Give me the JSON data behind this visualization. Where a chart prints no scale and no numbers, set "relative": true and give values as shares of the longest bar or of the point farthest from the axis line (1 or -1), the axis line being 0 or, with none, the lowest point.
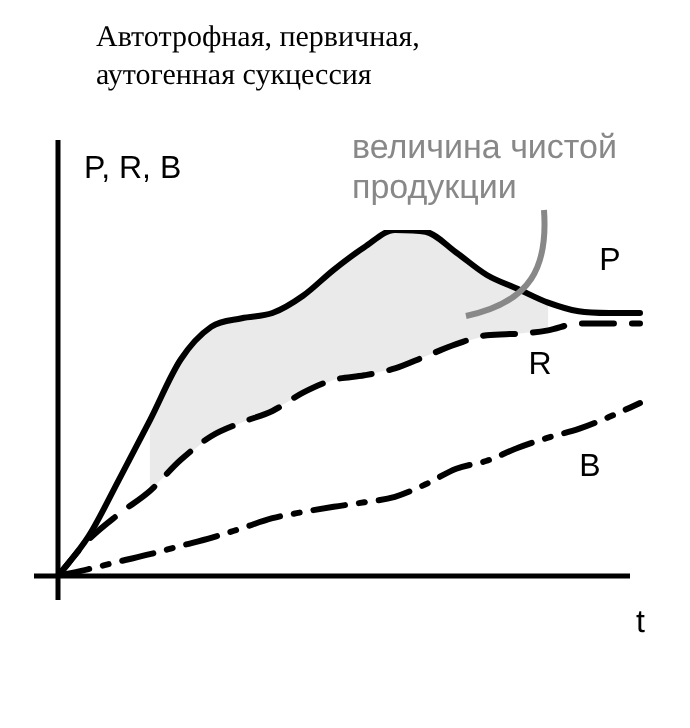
{
  "chart_data": {
    "type": "line",
    "title": "Автотрофная, первичная, аутогенная сукцессия",
    "xlabel": "t",
    "ylabel": "P, R, B",
    "annotations": [
      "величина чистой продукции"
    ],
    "relative": true,
    "legend": false,
    "marker": "none",
    "categories": [
      null,
      null,
      null,
      null,
      null,
      null,
      null,
      null,
      null,
      null,
      null,
      null,
      null,
      null,
      null,
      null,
      null,
      null,
      null,
      null
    ],
    "series": [
      {
        "name": "P",
        "color": "#000000",
        "line_style": "solid",
        "values": [
          0,
          0.115,
          0.28,
          0.45,
          0.625,
          0.72,
          0.745,
          0.76,
          0.81,
          0.885,
          0.95,
          1.0,
          0.995,
          0.935,
          0.87,
          0.83,
          0.79,
          0.765,
          0.76,
          0.76
        ],
        "lower": [
          null,
          null,
          null,
          0.246,
          0.335,
          0.404,
          0.444,
          0.477,
          0.53,
          0.567,
          0.58,
          0.6,
          0.635,
          0.67,
          0.696,
          0.7,
          0.71,
          null,
          null,
          null
        ],
        "upper": [
          null,
          null,
          null,
          0.45,
          0.625,
          0.72,
          0.745,
          0.76,
          0.81,
          0.885,
          0.95,
          1.0,
          0.995,
          0.935,
          0.87,
          0.83,
          0.79,
          null,
          null,
          null
        ]
      },
      {
        "name": "R",
        "color": "#000000",
        "line_style": "dashed",
        "values": [
          0,
          0.105,
          0.18,
          0.246,
          0.335,
          0.404,
          0.444,
          0.477,
          0.53,
          0.567,
          0.58,
          0.6,
          0.635,
          0.67,
          0.696,
          0.7,
          0.71,
          0.73,
          0.73,
          0.73
        ]
      },
      {
        "name": "B",
        "color": "#000000",
        "line_style": "dashdot",
        "values": [
          0,
          0.02,
          0.042,
          0.063,
          0.087,
          0.11,
          0.138,
          0.167,
          0.185,
          0.2,
          0.213,
          0.229,
          0.265,
          0.31,
          0.333,
          0.37,
          0.4,
          0.425,
          0.46,
          0.5
        ]
      }
    ]
  }
}
